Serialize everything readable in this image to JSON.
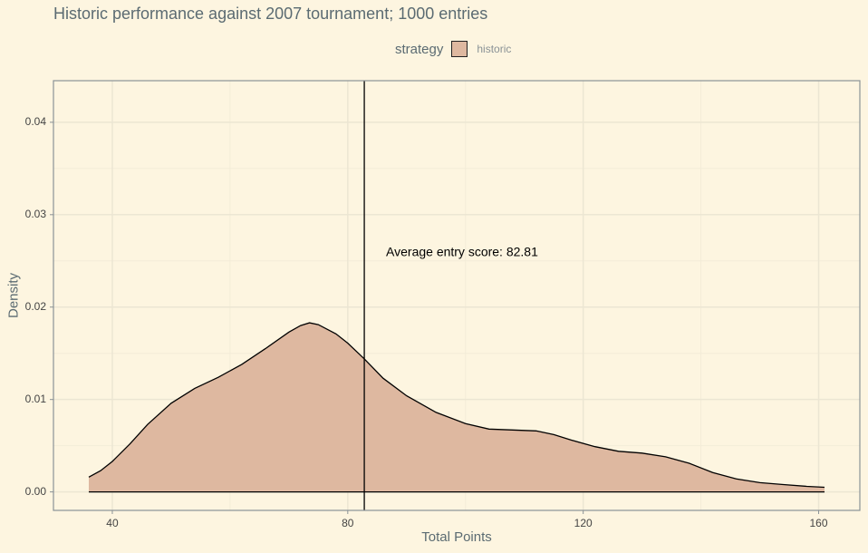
{
  "chart_data": {
    "type": "area",
    "title": "Historic performance against 2007 tournament; 1000 entries",
    "xlabel": "Total Points",
    "ylabel": "Density",
    "xlim": [
      30,
      167
    ],
    "ylim": [
      -0.002,
      0.0445
    ],
    "x_ticks": [
      40,
      80,
      120,
      160
    ],
    "x_tick_labels": [
      "40",
      "80",
      "120",
      "160"
    ],
    "y_ticks": [
      0,
      0.01,
      0.02,
      0.03,
      0.04
    ],
    "y_tick_labels": [
      "0.00",
      "0.01",
      "0.02",
      "0.03",
      "0.04"
    ],
    "grid": true,
    "legend": {
      "title": "strategy",
      "position": "top",
      "entries": [
        "historic"
      ]
    },
    "series": [
      {
        "name": "historic",
        "x": [
          36,
          38,
          40,
          43,
          46,
          50,
          54,
          58,
          62,
          66,
          70,
          72,
          73.5,
          75,
          78,
          80,
          82.8,
          86,
          90,
          95,
          100,
          104,
          108,
          112,
          115,
          118,
          122,
          126,
          130,
          134,
          138,
          142,
          146,
          150,
          154,
          158,
          161
        ],
        "y": [
          0.0016,
          0.0023,
          0.0033,
          0.0052,
          0.0073,
          0.0096,
          0.0112,
          0.0124,
          0.0138,
          0.0155,
          0.0173,
          0.018,
          0.0183,
          0.0181,
          0.0171,
          0.0161,
          0.0144,
          0.0123,
          0.0104,
          0.0086,
          0.0074,
          0.0068,
          0.0067,
          0.0066,
          0.0062,
          0.0056,
          0.0049,
          0.0044,
          0.0042,
          0.0038,
          0.0031,
          0.0021,
          0.0014,
          0.001,
          0.0008,
          0.0006,
          0.0005
        ],
        "fill": "#deb8a0",
        "stroke": "#000000"
      }
    ],
    "vline": {
      "x": 82.81,
      "color": "#000000"
    },
    "annotation": {
      "text": "Average entry score: 82.81",
      "x": 86.5,
      "y": 0.0259
    }
  },
  "colors": {
    "background": "#fdf5e0",
    "panel_border": "#8a9296",
    "grid_major": "#ece6d3",
    "grid_minor": "#f3ecd8",
    "text_muted": "#5b6b72",
    "tick_text": "#444444"
  }
}
